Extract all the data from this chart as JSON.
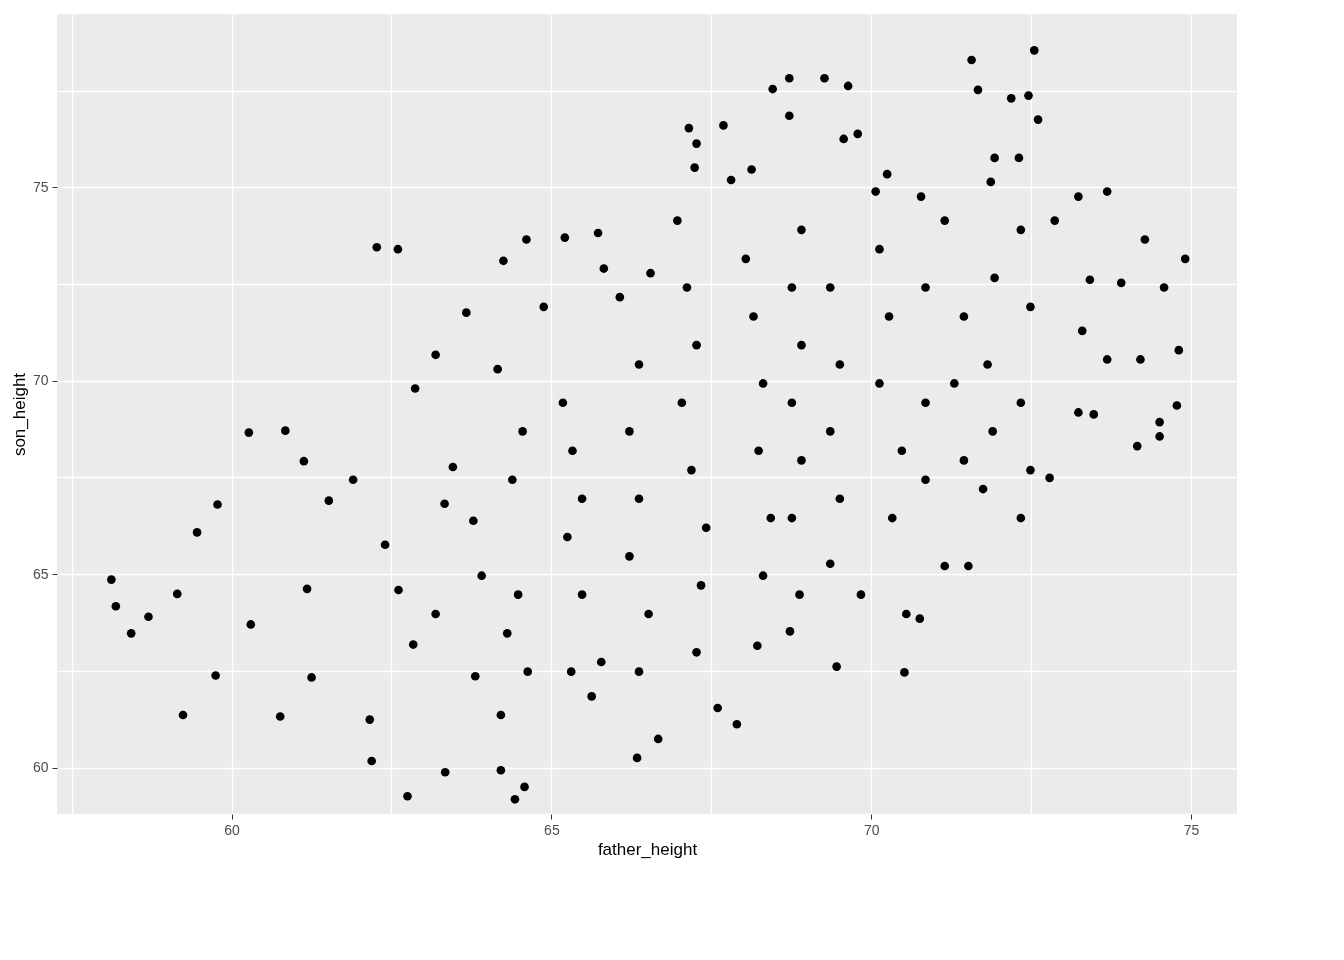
{
  "chart_data": {
    "type": "scatter",
    "xlabel": "father_height",
    "ylabel": "son_height",
    "x": [
      58.12,
      58.19,
      58.43,
      58.7,
      59.24,
      59.15,
      59.46,
      59.75,
      59.78,
      60.27,
      60.3,
      60.76,
      60.84,
      61.18,
      61.25,
      61.13,
      61.52,
      61.9,
      62.16,
      62.19,
      62.27,
      62.6,
      62.75,
      62.4,
      62.61,
      62.84,
      62.87,
      63.19,
      63.34,
      63.46,
      63.33,
      63.19,
      63.67,
      63.78,
      63.91,
      63.81,
      64.16,
      64.21,
      64.21,
      64.43,
      64.58,
      64.25,
      64.55,
      64.39,
      64.48,
      64.31,
      64.63,
      64.61,
      64.88,
      65.21,
      65.73,
      65.18,
      65.33,
      65.48,
      65.25,
      65.48,
      65.31,
      65.63,
      65.78,
      65.82,
      66.07,
      66.37,
      66.22,
      66.37,
      66.22,
      66.52,
      66.37,
      66.34,
      66.67,
      66.55,
      67.15,
      67.27,
      67.69,
      67.24,
      66.97,
      67.12,
      67.27,
      67.04,
      67.19,
      67.42,
      67.34,
      67.27,
      67.6,
      67.9,
      67.81,
      68.13,
      68.04,
      68.16,
      68.31,
      68.24,
      68.43,
      68.31,
      68.22,
      68.46,
      68.72,
      68.72,
      68.91,
      68.76,
      68.91,
      68.76,
      68.91,
      68.76,
      68.88,
      68.73,
      69.27,
      69.64,
      69.57,
      69.79,
      69.46,
      69.84,
      69.36,
      69.51,
      69.36,
      69.51,
      69.36,
      70.07,
      70.25,
      70.13,
      70.28,
      70.13,
      70.48,
      70.33,
      70.55,
      70.52,
      70.76,
      70.78,
      70.85,
      70.85,
      70.85,
      71.15,
      71.45,
      71.3,
      71.45,
      71.15,
      71.52,
      71.57,
      71.67,
      71.87,
      71.93,
      71.93,
      71.82,
      71.9,
      71.75,
      72.19,
      72.46,
      72.55,
      72.61,
      72.31,
      72.34,
      72.49,
      72.34,
      72.49,
      72.34,
      72.79,
      72.87,
      73.24,
      73.42,
      73.3,
      73.24,
      73.48,
      73.69,
      73.69,
      73.91,
      74.21,
      74.28,
      74.16,
      74.51,
      74.58,
      74.81,
      74.91,
      74.78,
      74.51
    ],
    "series": [
      {
        "color": "#000000",
        "values": [
          64.86,
          64.17,
          63.47,
          63.9,
          61.36,
          64.49,
          66.08,
          62.38,
          66.8,
          68.66,
          63.7,
          61.32,
          68.71,
          64.62,
          62.33,
          67.92,
          66.9,
          67.44,
          61.24,
          60.17,
          73.45,
          73.4,
          59.26,
          65.76,
          64.59,
          63.18,
          69.8,
          70.67,
          59.88,
          67.77,
          66.82,
          63.97,
          71.76,
          66.38,
          64.96,
          62.36,
          70.3,
          61.36,
          59.93,
          59.18,
          59.5,
          73.1,
          68.69,
          67.44,
          64.47,
          63.47,
          62.48,
          73.65,
          71.91,
          73.7,
          73.82,
          69.43,
          68.19,
          66.95,
          65.96,
          64.47,
          62.48,
          61.84,
          62.73,
          72.9,
          72.16,
          70.42,
          68.69,
          66.95,
          65.46,
          63.97,
          62.48,
          60.25,
          60.74,
          72.78,
          76.53,
          76.13,
          76.6,
          75.51,
          74.14,
          72.41,
          70.92,
          69.43,
          67.69,
          66.2,
          64.71,
          62.98,
          61.54,
          61.12,
          75.19,
          75.46,
          73.15,
          71.66,
          69.93,
          68.19,
          66.45,
          64.96,
          63.15,
          77.54,
          77.82,
          76.85,
          73.9,
          72.41,
          70.92,
          69.43,
          67.94,
          66.45,
          64.47,
          63.52,
          77.82,
          77.62,
          76.25,
          76.38,
          62.61,
          64.47,
          72.41,
          70.42,
          68.69,
          66.95,
          65.27,
          74.89,
          75.34,
          73.4,
          71.66,
          69.93,
          68.19,
          66.45,
          63.97,
          62.46,
          63.85,
          74.76,
          72.41,
          69.43,
          67.44,
          74.14,
          71.66,
          69.93,
          67.94,
          65.21,
          65.21,
          78.29,
          77.52,
          75.14,
          75.76,
          72.66,
          70.42,
          68.69,
          67.2,
          77.3,
          77.37,
          78.54,
          76.75,
          75.76,
          73.9,
          71.91,
          69.43,
          67.69,
          66.45,
          67.49,
          74.14,
          74.76,
          72.61,
          71.29,
          69.18,
          69.13,
          74.89,
          70.55,
          72.53,
          70.55,
          73.65,
          68.31,
          68.56,
          72.41,
          70.79,
          73.15,
          69.36,
          68.93
        ]
      }
    ],
    "xlim": [
      57.27,
      75.72
    ],
    "ylim": [
      58.8,
      79.48
    ],
    "xticks": [
      {
        "value": 57.5,
        "label": null
      },
      60,
      {
        "value": 62.5,
        "label": null
      },
      65,
      {
        "value": 67.5,
        "label": null
      },
      70,
      {
        "value": 72.5,
        "label": null
      },
      75
    ],
    "yticks": [
      60,
      {
        "value": 62.5,
        "label": null
      },
      65,
      {
        "value": 67.5,
        "label": null
      },
      70,
      {
        "value": 72.5,
        "label": null
      },
      75,
      {
        "value": 77.5,
        "label": null
      }
    ],
    "grid": true,
    "marker": "circle"
  }
}
